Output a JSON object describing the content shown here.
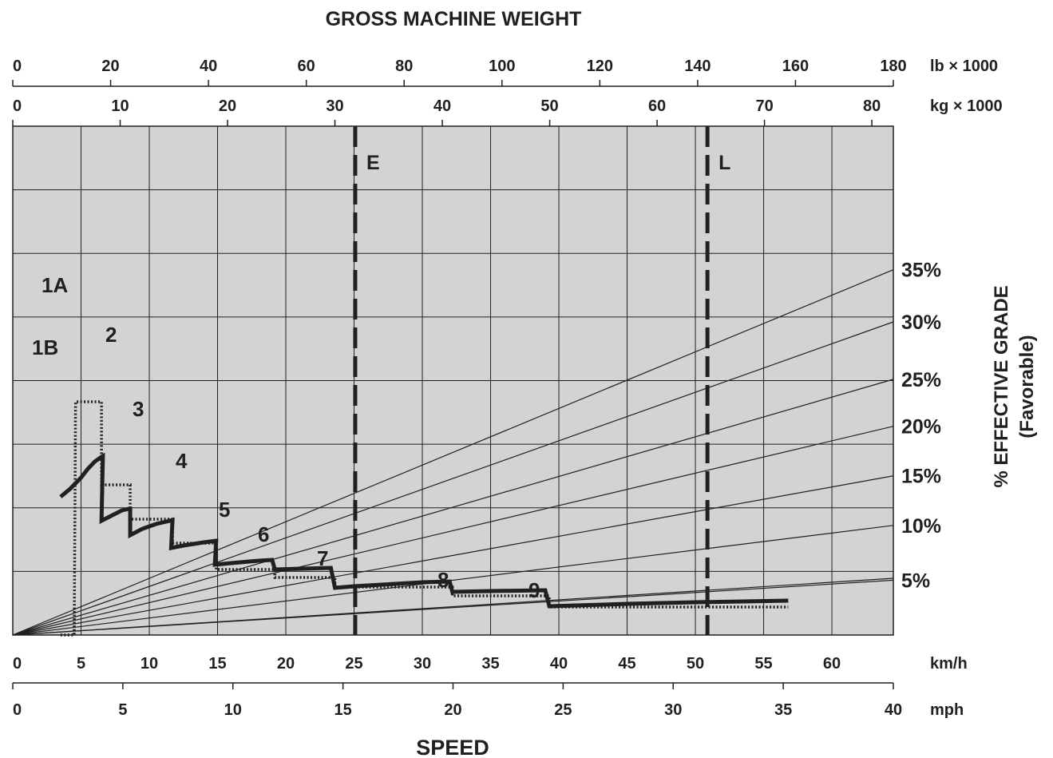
{
  "chart_data": {
    "type": "line",
    "title": "GROSS MACHINE WEIGHT",
    "xlabel": "SPEED",
    "ylabel": "% EFFECTIVE GRADE",
    "ylabel2": "(Favorable)",
    "weight_axes": [
      {
        "unit": "lb × 1000",
        "min": 0,
        "max": 180,
        "ticks": [
          0,
          20,
          40,
          60,
          80,
          100,
          120,
          140,
          160,
          180
        ]
      },
      {
        "unit": "kg × 1000",
        "min": 0,
        "max": 82,
        "ticks": [
          0,
          10,
          20,
          30,
          40,
          50,
          60,
          70,
          80
        ]
      }
    ],
    "speed_axes": [
      {
        "unit": "km/h",
        "min": 0,
        "max": 64.5,
        "ticks": [
          0,
          5,
          10,
          15,
          20,
          25,
          30,
          35,
          40,
          45,
          50,
          55,
          60
        ]
      },
      {
        "unit": "mph",
        "min": 0,
        "max": 40,
        "ticks": [
          0,
          5,
          10,
          15,
          20,
          25,
          30,
          35,
          40
        ]
      }
    ],
    "grid": true,
    "grade_lines": [
      {
        "label": "35%",
        "weight_lb": 140
      },
      {
        "label": "30%",
        "weight_lb": 120
      },
      {
        "label": "25%",
        "weight_lb": 98
      },
      {
        "label": "20%",
        "weight_lb": 80
      },
      {
        "label": "15%",
        "weight_lb": 61
      },
      {
        "label": "10%",
        "weight_lb": 42
      },
      {
        "label": "5%",
        "weight_lb": 21
      },
      {
        "label": "",
        "weight_lb": 0
      }
    ],
    "reference_lines": [
      {
        "label": "E",
        "weight_lb": 70
      },
      {
        "label": "L",
        "weight_lb": 142
      }
    ],
    "series": [
      {
        "style": "solid",
        "points": [
          [
            3.5,
            173
          ],
          [
            4.2,
            183
          ],
          [
            5.0,
            197
          ],
          [
            5.5,
            208
          ],
          [
            6.0,
            217
          ],
          [
            6.5,
            223
          ],
          [
            6.6,
            224
          ],
          [
            6.5,
            143
          ],
          [
            7.3,
            150
          ],
          [
            8.0,
            156
          ],
          [
            8.5,
            158
          ],
          [
            8.6,
            158
          ],
          [
            8.6,
            125
          ],
          [
            9.5,
            133
          ],
          [
            10.5,
            139
          ],
          [
            11.5,
            143
          ],
          [
            11.7,
            144
          ],
          [
            11.6,
            109
          ],
          [
            12.5,
            112
          ],
          [
            14.0,
            116
          ],
          [
            14.9,
            118
          ],
          [
            14.8,
            88
          ],
          [
            16.0,
            90
          ],
          [
            18.0,
            93
          ],
          [
            19.0,
            94
          ],
          [
            19.2,
            82
          ],
          [
            21.0,
            83
          ],
          [
            23.3,
            84
          ],
          [
            23.6,
            59
          ],
          [
            25.0,
            61
          ],
          [
            28.0,
            64
          ],
          [
            30.0,
            66
          ],
          [
            32.0,
            67
          ],
          [
            32.2,
            54
          ],
          [
            35.0,
            55
          ],
          [
            39.0,
            56
          ],
          [
            39.3,
            36
          ],
          [
            45.0,
            39
          ],
          [
            50.0,
            41
          ],
          [
            56.8,
            43
          ]
        ]
      },
      {
        "style": "dotted",
        "points": [
          [
            3.5,
            0
          ],
          [
            4.4,
            0
          ],
          [
            4.5,
            0
          ],
          [
            4.6,
            292
          ],
          [
            6.5,
            292
          ],
          [
            6.5,
            188
          ],
          [
            8.6,
            188
          ],
          [
            8.6,
            145
          ],
          [
            11.7,
            145
          ],
          [
            11.7,
            115
          ],
          [
            14.9,
            115
          ],
          [
            14.9,
            82
          ],
          [
            19.2,
            82
          ],
          [
            19.2,
            72
          ],
          [
            23.6,
            72
          ],
          [
            23.6,
            60
          ],
          [
            32.2,
            60
          ],
          [
            32.2,
            49
          ],
          [
            39.3,
            49
          ],
          [
            39.3,
            35
          ],
          [
            56.8,
            35
          ]
        ]
      }
    ],
    "gear_labels": [
      "1A",
      "1B",
      "2",
      "3",
      "4",
      "5",
      "6",
      "7",
      "8",
      "9"
    ]
  }
}
